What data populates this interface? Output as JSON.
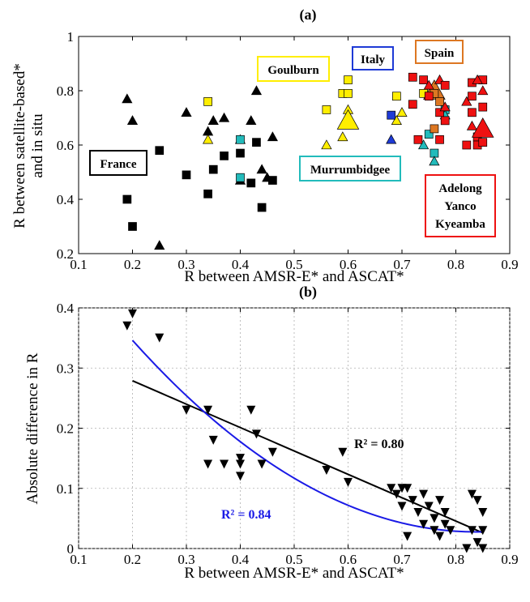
{
  "chart_data": [
    {
      "type": "scatter",
      "panel_label": "(a)",
      "xlabel": "R between AMSR-E* and ASCAT*",
      "ylabel_line1": "R between satellite-based*",
      "ylabel_line2": "and in situ",
      "xlim": [
        0.1,
        0.9
      ],
      "ylim": [
        0.2,
        1.0
      ],
      "xticks": [
        "0.1",
        "0.2",
        "0.3",
        "0.4",
        "0.5",
        "0.6",
        "0.7",
        "0.8",
        "0.9"
      ],
      "yticks": [
        "0.2",
        "0.4",
        "0.6",
        "0.8",
        "1"
      ],
      "grid": false,
      "groups": [
        {
          "name": "France",
          "color": "#000000",
          "box_color": "#000000",
          "points": [
            {
              "x": 0.19,
              "y": 0.77,
              "m": "tri"
            },
            {
              "x": 0.2,
              "y": 0.69,
              "m": "tri"
            },
            {
              "x": 0.19,
              "y": 0.4,
              "m": "sq"
            },
            {
              "x": 0.2,
              "y": 0.3,
              "m": "sq"
            },
            {
              "x": 0.25,
              "y": 0.58,
              "m": "sq"
            },
            {
              "x": 0.25,
              "y": 0.23,
              "m": "tri"
            },
            {
              "x": 0.3,
              "y": 0.72,
              "m": "tri"
            },
            {
              "x": 0.3,
              "y": 0.49,
              "m": "sq"
            },
            {
              "x": 0.34,
              "y": 0.65,
              "m": "tri"
            },
            {
              "x": 0.34,
              "y": 0.42,
              "m": "sq"
            },
            {
              "x": 0.35,
              "y": 0.69,
              "m": "tri"
            },
            {
              "x": 0.35,
              "y": 0.51,
              "m": "sq"
            },
            {
              "x": 0.37,
              "y": 0.7,
              "m": "tri"
            },
            {
              "x": 0.37,
              "y": 0.56,
              "m": "sq"
            },
            {
              "x": 0.4,
              "y": 0.62,
              "m": "tri"
            },
            {
              "x": 0.4,
              "y": 0.57,
              "m": "sq"
            },
            {
              "x": 0.4,
              "y": 0.47,
              "m": "tri"
            },
            {
              "x": 0.42,
              "y": 0.69,
              "m": "tri"
            },
            {
              "x": 0.42,
              "y": 0.46,
              "m": "sq"
            },
            {
              "x": 0.43,
              "y": 0.8,
              "m": "tri"
            },
            {
              "x": 0.43,
              "y": 0.61,
              "m": "sq"
            },
            {
              "x": 0.44,
              "y": 0.51,
              "m": "tri"
            },
            {
              "x": 0.44,
              "y": 0.37,
              "m": "sq"
            },
            {
              "x": 0.45,
              "y": 0.48,
              "m": "tri"
            },
            {
              "x": 0.46,
              "y": 0.63,
              "m": "tri"
            },
            {
              "x": 0.46,
              "y": 0.47,
              "m": "sq"
            }
          ]
        },
        {
          "name": "Goulburn",
          "color": "#ffee00",
          "box_color": "#ffee00",
          "points": [
            {
              "x": 0.34,
              "y": 0.76,
              "m": "sq"
            },
            {
              "x": 0.34,
              "y": 0.62,
              "m": "tri"
            },
            {
              "x": 0.56,
              "y": 0.73,
              "m": "sq"
            },
            {
              "x": 0.56,
              "y": 0.6,
              "m": "tri"
            },
            {
              "x": 0.59,
              "y": 0.79,
              "m": "sq"
            },
            {
              "x": 0.59,
              "y": 0.63,
              "m": "tri"
            },
            {
              "x": 0.6,
              "y": 0.84,
              "m": "sq"
            },
            {
              "x": 0.6,
              "y": 0.79,
              "m": "sq"
            },
            {
              "x": 0.6,
              "y": 0.73,
              "m": "tri"
            },
            {
              "x": 0.6,
              "y": 0.69,
              "m": "tri",
              "big": true
            },
            {
              "x": 0.69,
              "y": 0.78,
              "m": "sq"
            },
            {
              "x": 0.69,
              "y": 0.69,
              "m": "tri"
            },
            {
              "x": 0.7,
              "y": 0.72,
              "m": "tri"
            },
            {
              "x": 0.74,
              "y": 0.79,
              "m": "sq"
            }
          ]
        },
        {
          "name": "Italy",
          "color": "#1e3ad6",
          "box_color": "#1e3ad6",
          "points": [
            {
              "x": 0.68,
              "y": 0.71,
              "m": "sq"
            },
            {
              "x": 0.68,
              "y": 0.62,
              "m": "tri"
            }
          ]
        },
        {
          "name": "Murrumbidgee",
          "color": "#22bbbb",
          "box_color": "#22bbbb",
          "points": [
            {
              "x": 0.4,
              "y": 0.62,
              "m": "sq"
            },
            {
              "x": 0.4,
              "y": 0.48,
              "m": "sq"
            },
            {
              "x": 0.74,
              "y": 0.6,
              "m": "tri"
            },
            {
              "x": 0.75,
              "y": 0.64,
              "m": "sq"
            },
            {
              "x": 0.76,
              "y": 0.57,
              "m": "sq"
            },
            {
              "x": 0.76,
              "y": 0.54,
              "m": "tri"
            },
            {
              "x": 0.78,
              "y": 0.73,
              "m": "sq"
            },
            {
              "x": 0.78,
              "y": 0.71,
              "m": "tri"
            }
          ]
        },
        {
          "name": "Spain",
          "color": "#dd7722",
          "box_color": "#dd7722",
          "points": [
            {
              "x": 0.76,
              "y": 0.8,
              "m": "tri",
              "big": true
            },
            {
              "x": 0.76,
              "y": 0.79,
              "m": "sq"
            },
            {
              "x": 0.77,
              "y": 0.76,
              "m": "sq"
            },
            {
              "x": 0.76,
              "y": 0.66,
              "m": "sq"
            }
          ]
        },
        {
          "name": "Adelong Yanco Kyeamba",
          "color": "#ee1111",
          "box_color": "#ee1111",
          "points": [
            {
              "x": 0.72,
              "y": 0.85,
              "m": "sq"
            },
            {
              "x": 0.72,
              "y": 0.75,
              "m": "sq"
            },
            {
              "x": 0.73,
              "y": 0.62,
              "m": "sq"
            },
            {
              "x": 0.74,
              "y": 0.84,
              "m": "sq"
            },
            {
              "x": 0.75,
              "y": 0.82,
              "m": "tri"
            },
            {
              "x": 0.75,
              "y": 0.78,
              "m": "sq"
            },
            {
              "x": 0.77,
              "y": 0.84,
              "m": "tri"
            },
            {
              "x": 0.77,
              "y": 0.72,
              "m": "sq"
            },
            {
              "x": 0.77,
              "y": 0.62,
              "m": "sq"
            },
            {
              "x": 0.78,
              "y": 0.82,
              "m": "sq"
            },
            {
              "x": 0.78,
              "y": 0.74,
              "m": "tri"
            },
            {
              "x": 0.78,
              "y": 0.69,
              "m": "sq"
            },
            {
              "x": 0.82,
              "y": 0.76,
              "m": "tri"
            },
            {
              "x": 0.83,
              "y": 0.83,
              "m": "sq"
            },
            {
              "x": 0.83,
              "y": 0.78,
              "m": "sq"
            },
            {
              "x": 0.83,
              "y": 0.72,
              "m": "sq"
            },
            {
              "x": 0.83,
              "y": 0.67,
              "m": "tri"
            },
            {
              "x": 0.84,
              "y": 0.63,
              "m": "sq"
            },
            {
              "x": 0.84,
              "y": 0.6,
              "m": "sq"
            },
            {
              "x": 0.85,
              "y": 0.84,
              "m": "sq"
            },
            {
              "x": 0.85,
              "y": 0.8,
              "m": "tri"
            },
            {
              "x": 0.85,
              "y": 0.74,
              "m": "sq"
            },
            {
              "x": 0.85,
              "y": 0.66,
              "m": "tri",
              "big": true
            },
            {
              "x": 0.85,
              "y": 0.61,
              "m": "sq"
            },
            {
              "x": 0.84,
              "y": 0.84,
              "m": "tri"
            },
            {
              "x": 0.82,
              "y": 0.6,
              "m": "sq"
            }
          ]
        }
      ]
    },
    {
      "type": "scatter",
      "panel_label": "(b)",
      "xlabel": "R between AMSR-E* and ASCAT*",
      "ylabel": "Absolute difference in R",
      "xlim": [
        0.1,
        0.9
      ],
      "ylim": [
        0,
        0.4
      ],
      "xticks": [
        "0.1",
        "0.2",
        "0.3",
        "0.4",
        "0.5",
        "0.6",
        "0.7",
        "0.8",
        "0.9"
      ],
      "yticks": [
        "0",
        "0.1",
        "0.2",
        "0.3",
        "0.4"
      ],
      "grid": true,
      "points": [
        {
          "x": 0.19,
          "y": 0.37
        },
        {
          "x": 0.2,
          "y": 0.39
        },
        {
          "x": 0.25,
          "y": 0.35
        },
        {
          "x": 0.3,
          "y": 0.23
        },
        {
          "x": 0.34,
          "y": 0.14
        },
        {
          "x": 0.34,
          "y": 0.23
        },
        {
          "x": 0.35,
          "y": 0.18
        },
        {
          "x": 0.37,
          "y": 0.14
        },
        {
          "x": 0.4,
          "y": 0.12
        },
        {
          "x": 0.4,
          "y": 0.15
        },
        {
          "x": 0.4,
          "y": 0.14
        },
        {
          "x": 0.42,
          "y": 0.23
        },
        {
          "x": 0.43,
          "y": 0.19
        },
        {
          "x": 0.44,
          "y": 0.14
        },
        {
          "x": 0.46,
          "y": 0.16
        },
        {
          "x": 0.56,
          "y": 0.13
        },
        {
          "x": 0.59,
          "y": 0.16
        },
        {
          "x": 0.6,
          "y": 0.11
        },
        {
          "x": 0.68,
          "y": 0.1
        },
        {
          "x": 0.69,
          "y": 0.09
        },
        {
          "x": 0.7,
          "y": 0.1
        },
        {
          "x": 0.7,
          "y": 0.07
        },
        {
          "x": 0.71,
          "y": 0.1
        },
        {
          "x": 0.71,
          "y": 0.02
        },
        {
          "x": 0.72,
          "y": 0.08
        },
        {
          "x": 0.73,
          "y": 0.06
        },
        {
          "x": 0.74,
          "y": 0.09
        },
        {
          "x": 0.74,
          "y": 0.04
        },
        {
          "x": 0.75,
          "y": 0.07
        },
        {
          "x": 0.76,
          "y": 0.05
        },
        {
          "x": 0.76,
          "y": 0.03
        },
        {
          "x": 0.77,
          "y": 0.08
        },
        {
          "x": 0.77,
          "y": 0.02
        },
        {
          "x": 0.78,
          "y": 0.04
        },
        {
          "x": 0.78,
          "y": 0.06
        },
        {
          "x": 0.79,
          "y": 0.03
        },
        {
          "x": 0.82,
          "y": 0.0
        },
        {
          "x": 0.83,
          "y": 0.09
        },
        {
          "x": 0.83,
          "y": 0.03
        },
        {
          "x": 0.84,
          "y": 0.08
        },
        {
          "x": 0.84,
          "y": 0.01
        },
        {
          "x": 0.85,
          "y": 0.06
        },
        {
          "x": 0.85,
          "y": 0.03
        },
        {
          "x": 0.85,
          "y": 0.0
        }
      ],
      "fits": [
        {
          "kind": "linear",
          "color": "#000000",
          "coef": [
            0.3566,
            -0.3888
          ],
          "x_range": [
            0.2,
            0.85
          ],
          "label": "R² = 0.80",
          "label_color": "#000000"
        },
        {
          "kind": "quadratic",
          "color": "#1a1ae6",
          "coef": [
            0.5773,
            -1.3125,
            0.7835
          ],
          "x_range": [
            0.2,
            0.85
          ],
          "label": "R² = 0.84",
          "label_color": "#1a1ae6"
        }
      ]
    }
  ]
}
